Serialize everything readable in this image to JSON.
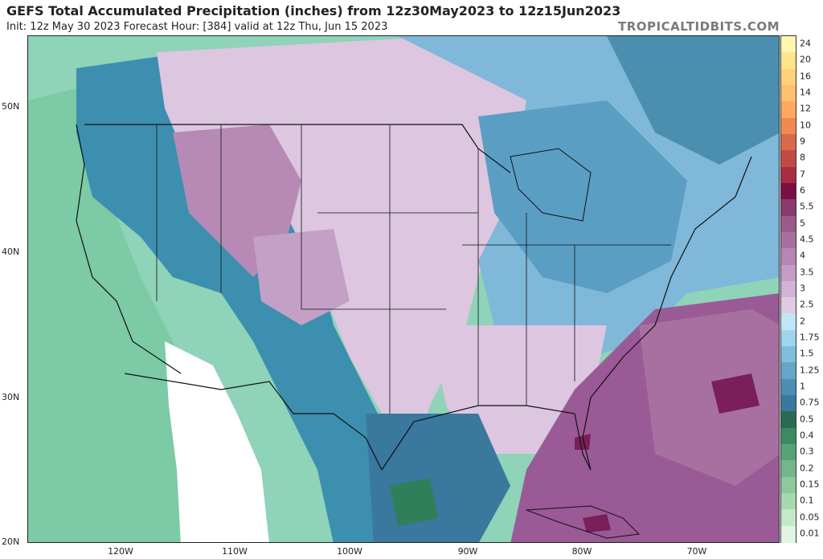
{
  "header": {
    "title": "GEFS Total Accumulated Precipitation (inches) from 12z30May2023 to 12z15Jun2023",
    "subtitle": "Init: 12z May 30 2023   Forecast Hour: [384]   valid at 12z Thu, Jun 15 2023",
    "brand": "TROPICALTIDBITS.COM"
  },
  "map": {
    "lat_labels": [
      "50N",
      "40N",
      "30N",
      "20N"
    ],
    "lon_labels": [
      "120W",
      "110W",
      "100W",
      "90W",
      "80W",
      "70W"
    ],
    "colors": {
      "ocean_west": "#8fd3b8",
      "land_west": "#6fc29a",
      "rockies_blue": "#3d8fb0",
      "plains_pink": "#dcc6e0",
      "east_blue": "#7fb8d8",
      "atlantic_blue": "#4a8fb0",
      "purple": "#9a5a96",
      "dark_purple": "#7a1f5a",
      "dry_white": "#ffffff",
      "green_deep": "#2f7f5a",
      "outline": "#111111"
    }
  },
  "colorbar": {
    "labels": [
      "24",
      "20",
      "16",
      "14",
      "12",
      "10",
      "9",
      "8",
      "7",
      "6",
      "5.5",
      "5",
      "4.5",
      "4",
      "3.5",
      "3",
      "2.5",
      "2",
      "1.75",
      "1.5",
      "1.25",
      "1",
      "0.75",
      "0.5",
      "0.4",
      "0.3",
      "0.2",
      "0.15",
      "0.1",
      "0.05",
      "0.01"
    ],
    "colors": [
      "#fff7b0",
      "#ffe58a",
      "#ffd27a",
      "#ffc070",
      "#ffa860",
      "#f08a50",
      "#d86a48",
      "#c04a46",
      "#a82c44",
      "#7a1040",
      "#8a3a6e",
      "#9a5a8a",
      "#a870a0",
      "#b686b4",
      "#c49cc6",
      "#d2b2d6",
      "#e0cae4",
      "#bfe6f6",
      "#9fd4ee",
      "#80bedd",
      "#64a6c8",
      "#4c8eb4",
      "#3a789e",
      "#2a6a52",
      "#3c8a64",
      "#58a278",
      "#74b68a",
      "#8ec89c",
      "#a8d8b0",
      "#c4e8c8",
      "#e2f4e4"
    ]
  }
}
